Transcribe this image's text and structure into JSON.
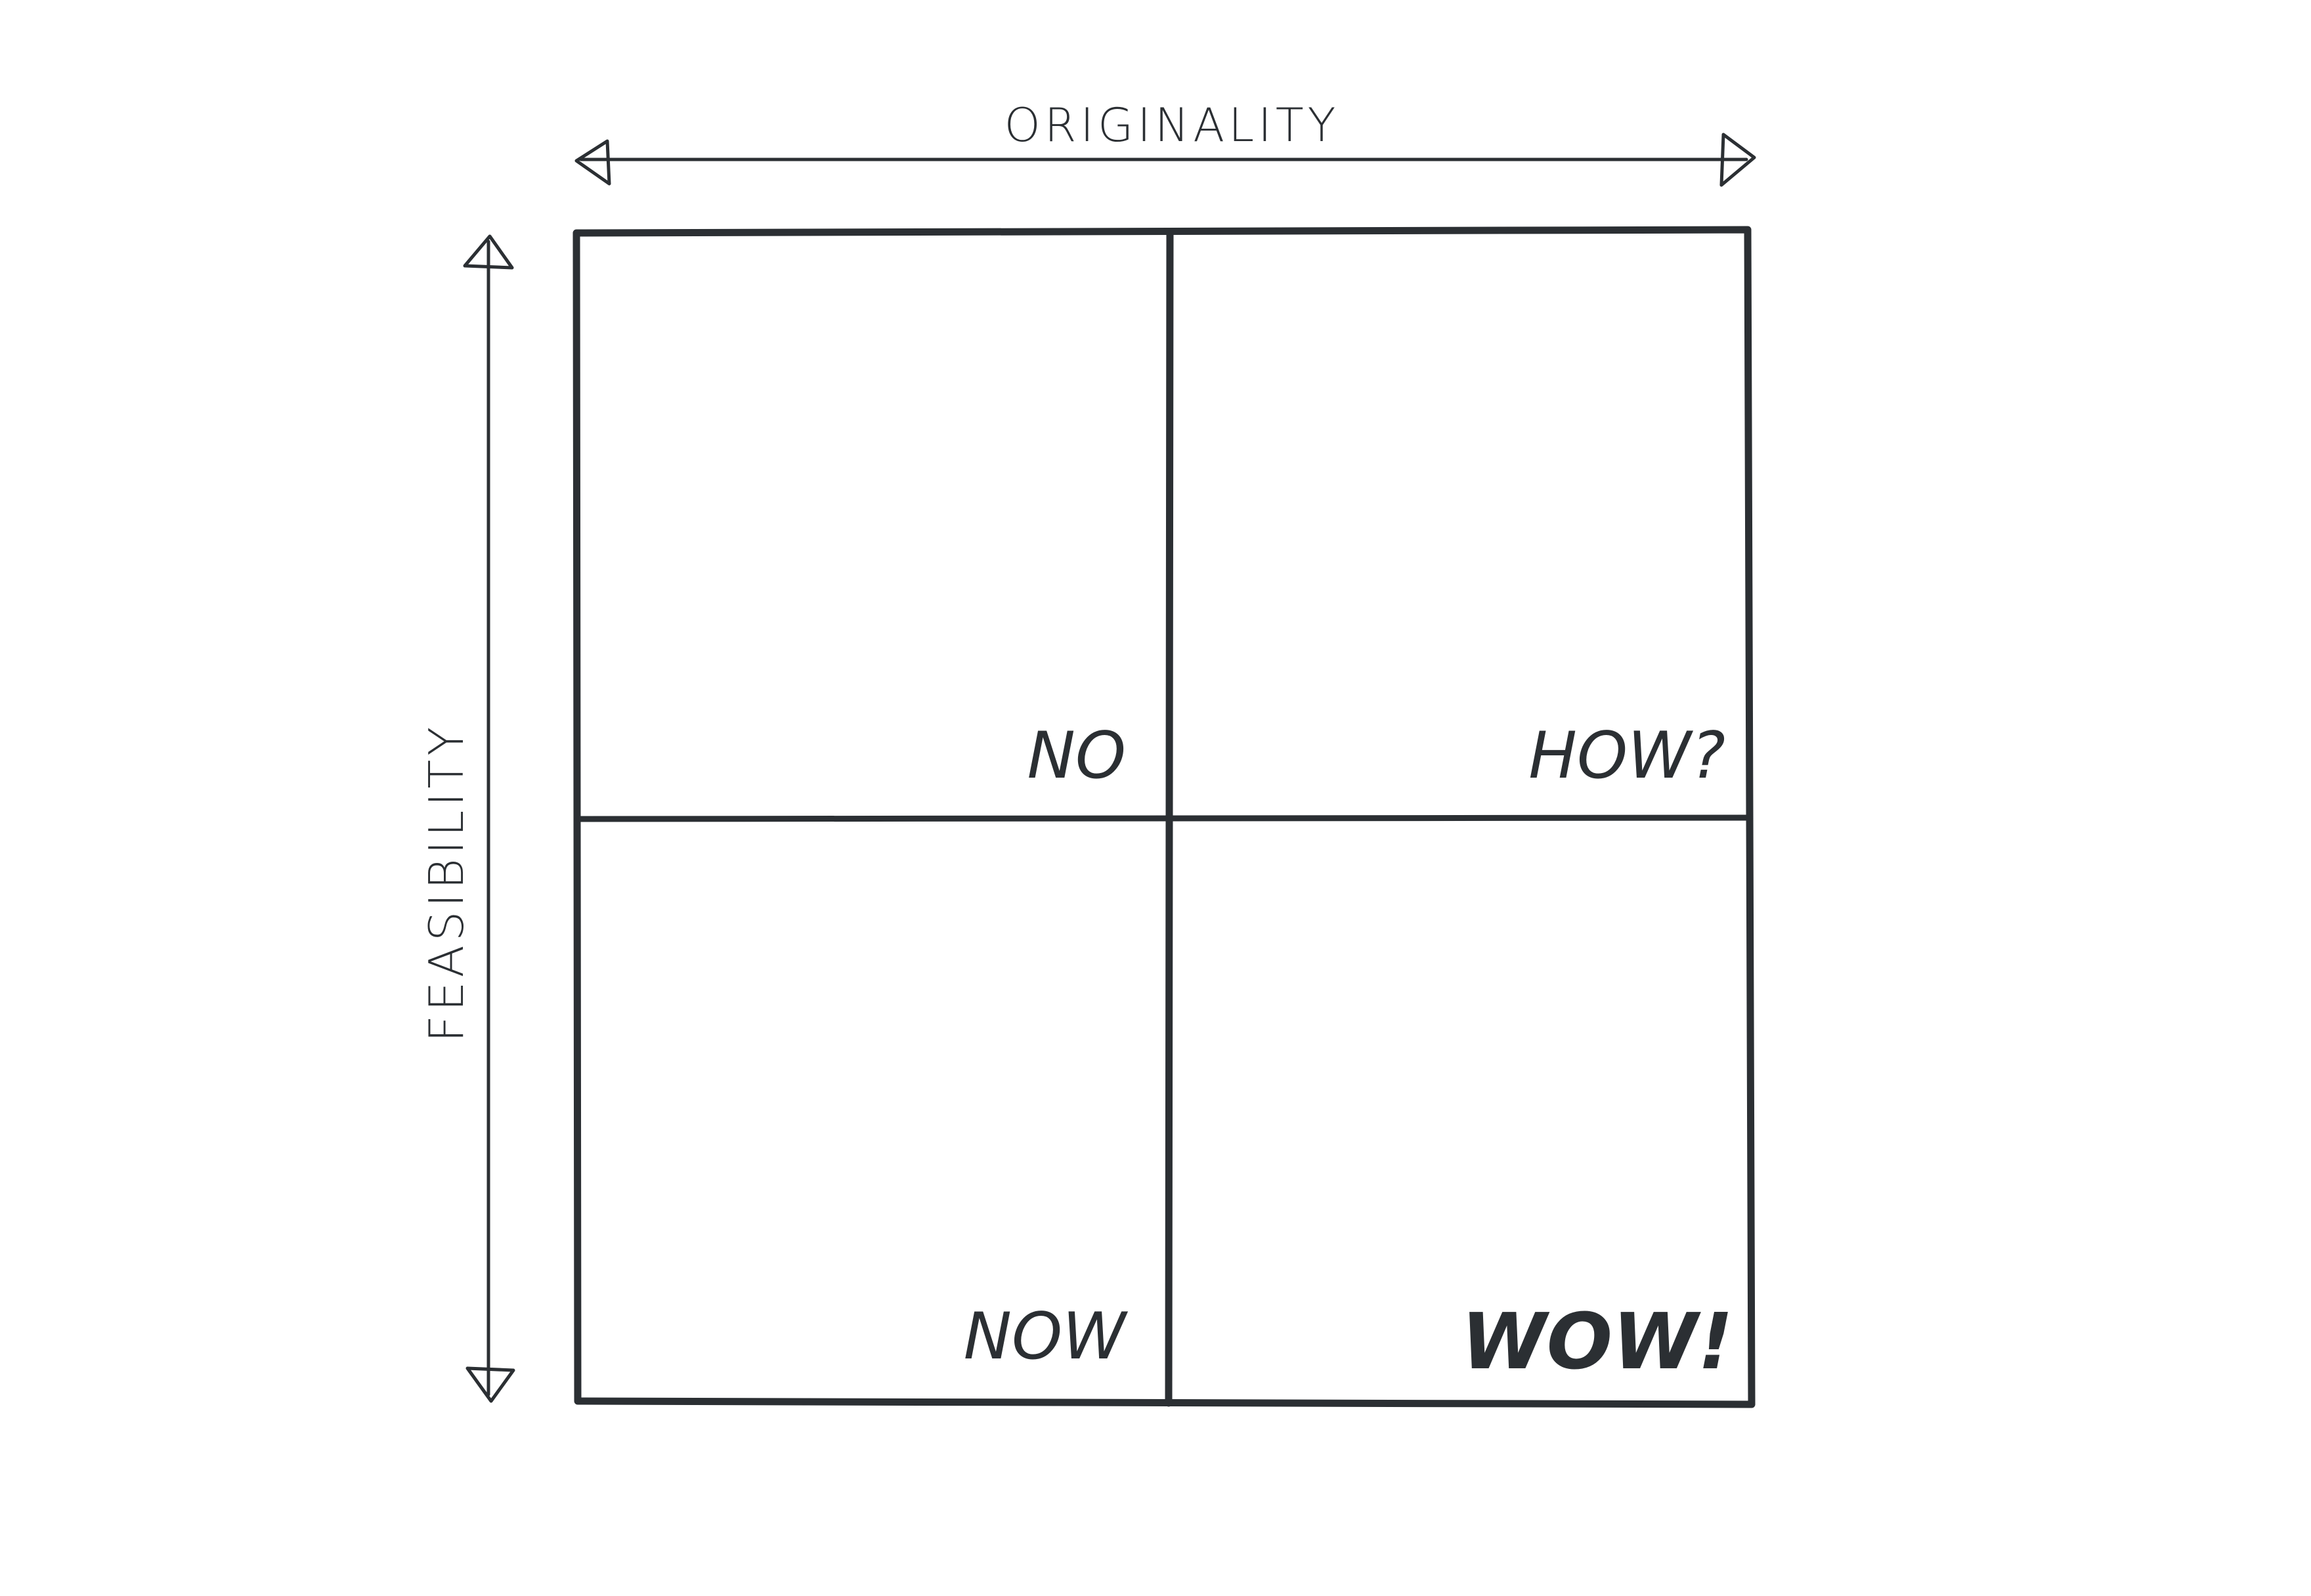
{
  "diagram": {
    "x_axis_label": "ORIGINALITY",
    "y_axis_label": "FEASIBILITY",
    "quadrants": {
      "top_left": "NO",
      "top_right": "HOW?",
      "bottom_left": "NOW",
      "bottom_right": "WOW!"
    }
  }
}
